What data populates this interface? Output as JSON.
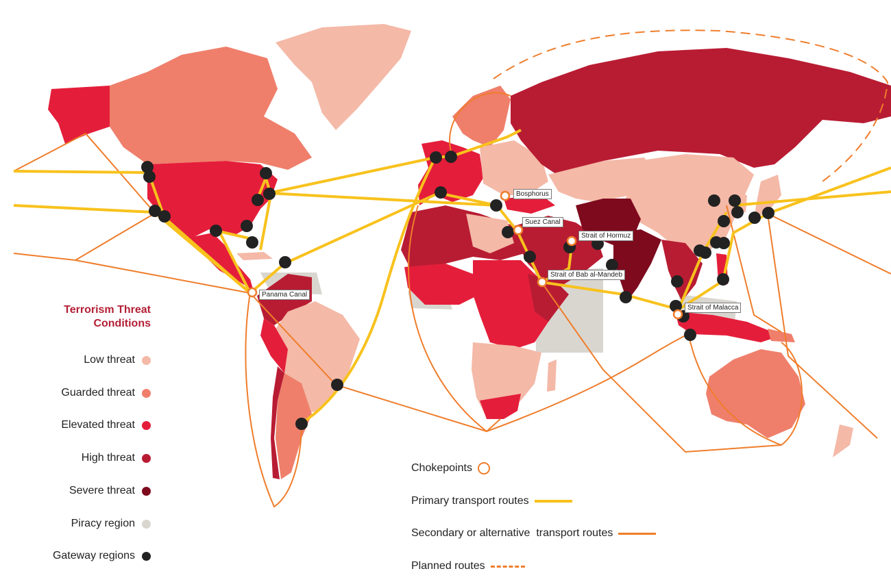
{
  "colors": {
    "low": "#f4b9a7",
    "guarded": "#ef7f6b",
    "elevated": "#e41e3a",
    "high": "#b81c33",
    "severe": "#7e0a1e",
    "piracy": "#d9d6d0",
    "gateway": "#222222",
    "chokepoint": "#ef7d2b",
    "primary_route": "#f8c21d",
    "secondary_route": "#ef7d2b",
    "planned_route": "#ef7d2b"
  },
  "legend": {
    "title_line1": "Terrorism Threat",
    "title_line2": "Conditions",
    "items": [
      {
        "label": "Low threat",
        "color": "#f4b9a7",
        "icon": "low-threat-swatch"
      },
      {
        "label": "Guarded threat",
        "color": "#ef7f6b",
        "icon": "guarded-threat-swatch"
      },
      {
        "label": "Elevated threat",
        "color": "#e41e3a",
        "icon": "elevated-threat-swatch"
      },
      {
        "label": "High threat",
        "color": "#b81c33",
        "icon": "high-threat-swatch"
      },
      {
        "label": "Severe threat",
        "color": "#7e0a1e",
        "icon": "severe-threat-swatch"
      },
      {
        "label": "Piracy region",
        "color": "#d9d6d0",
        "icon": "piracy-region-swatch"
      },
      {
        "label": "Gateway regions",
        "color": "#222222",
        "icon": "gateway-dot"
      }
    ]
  },
  "route_key": {
    "chokepoints": "Chokepoints",
    "primary": "Primary transport routes",
    "secondary": "Secondary or alternative  transport routes",
    "planned": "Planned routes"
  },
  "chokepoints": [
    {
      "label": "Bosphorus"
    },
    {
      "label": "Suez Canal"
    },
    {
      "label": "Strait of Hormuz"
    },
    {
      "label": "Strait of Bab al-Mandeb"
    },
    {
      "label": "Strait of Malacca"
    },
    {
      "label": "Panama Canal"
    }
  ]
}
